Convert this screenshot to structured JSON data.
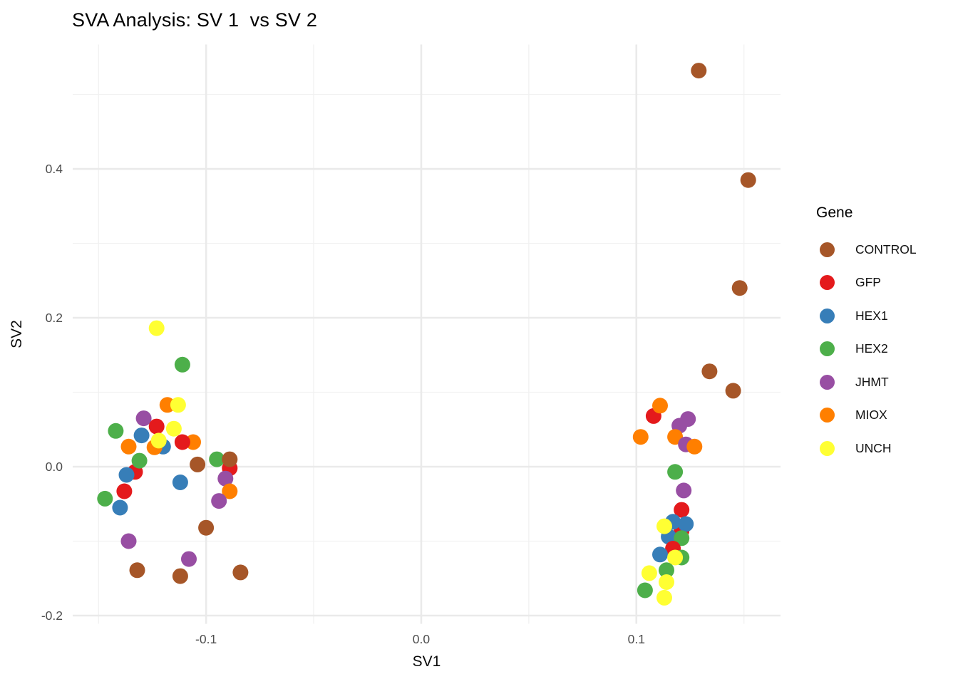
{
  "title": "SVA Analysis: SV 1  vs SV 2",
  "legend": {
    "title": "Gene",
    "entries": [
      {
        "label": "CONTROL",
        "color": "#A65628"
      },
      {
        "label": "GFP",
        "color": "#E41A1C"
      },
      {
        "label": "HEX1",
        "color": "#377EB8"
      },
      {
        "label": "HEX2",
        "color": "#4DAF4A"
      },
      {
        "label": "JHMT",
        "color": "#984EA3"
      },
      {
        "label": "MIOX",
        "color": "#FF7F00"
      },
      {
        "label": "UNCH",
        "color": "#FFFF33"
      }
    ]
  },
  "chart_data": {
    "type": "scatter",
    "title": "SVA Analysis: SV 1  vs SV 2",
    "xlabel": "SV1",
    "ylabel": "SV2",
    "legend_position": "right",
    "grid": true,
    "xlim": [
      -0.162,
      0.167
    ],
    "ylim": [
      -0.211,
      0.567
    ],
    "x_ticks": [
      {
        "value": -0.1,
        "label": "-0.1"
      },
      {
        "value": 0.0,
        "label": "0.0"
      },
      {
        "value": 0.1,
        "label": "0.1"
      }
    ],
    "y_ticks": [
      {
        "value": -0.2,
        "label": "-0.2"
      },
      {
        "value": 0.0,
        "label": "0.0"
      },
      {
        "value": 0.2,
        "label": "0.2"
      },
      {
        "value": 0.4,
        "label": "0.4"
      }
    ],
    "x_minor": [
      -0.15,
      -0.05,
      0.05,
      0.15
    ],
    "y_minor": [
      -0.1,
      0.1,
      0.3,
      0.5
    ],
    "points": [
      {
        "gene": "MIOX",
        "x": -0.118,
        "y": 0.083
      },
      {
        "gene": "UNCH",
        "x": -0.113,
        "y": 0.083
      },
      {
        "gene": "HEX2",
        "x": -0.111,
        "y": 0.137
      },
      {
        "gene": "UNCH",
        "x": -0.123,
        "y": 0.186
      },
      {
        "gene": "JHMT",
        "x": -0.129,
        "y": 0.065
      },
      {
        "gene": "HEX1",
        "x": -0.13,
        "y": 0.042
      },
      {
        "gene": "GFP",
        "x": -0.123,
        "y": 0.054
      },
      {
        "gene": "UNCH",
        "x": -0.115,
        "y": 0.051
      },
      {
        "gene": "HEX2",
        "x": -0.142,
        "y": 0.048
      },
      {
        "gene": "MIOX",
        "x": -0.136,
        "y": 0.027
      },
      {
        "gene": "HEX1",
        "x": -0.12,
        "y": 0.027
      },
      {
        "gene": "MIOX",
        "x": -0.124,
        "y": 0.026
      },
      {
        "gene": "UNCH",
        "x": -0.122,
        "y": 0.035
      },
      {
        "gene": "MIOX",
        "x": -0.106,
        "y": 0.033
      },
      {
        "gene": "GFP",
        "x": -0.111,
        "y": 0.033
      },
      {
        "gene": "GFP",
        "x": -0.133,
        "y": -0.007
      },
      {
        "gene": "HEX1",
        "x": -0.137,
        "y": -0.011
      },
      {
        "gene": "HEX2",
        "x": -0.131,
        "y": 0.008
      },
      {
        "gene": "CONTROL",
        "x": -0.104,
        "y": 0.003
      },
      {
        "gene": "HEX2",
        "x": -0.095,
        "y": 0.01
      },
      {
        "gene": "GFP",
        "x": -0.089,
        "y": -0.002
      },
      {
        "gene": "CONTROL",
        "x": -0.089,
        "y": 0.01
      },
      {
        "gene": "JHMT",
        "x": -0.091,
        "y": -0.016
      },
      {
        "gene": "HEX1",
        "x": -0.112,
        "y": -0.021
      },
      {
        "gene": "GFP",
        "x": -0.138,
        "y": -0.033
      },
      {
        "gene": "HEX2",
        "x": -0.147,
        "y": -0.043
      },
      {
        "gene": "HEX1",
        "x": -0.14,
        "y": -0.055
      },
      {
        "gene": "MIOX",
        "x": -0.089,
        "y": -0.033
      },
      {
        "gene": "JHMT",
        "x": -0.094,
        "y": -0.046
      },
      {
        "gene": "CONTROL",
        "x": -0.1,
        "y": -0.082
      },
      {
        "gene": "JHMT",
        "x": -0.136,
        "y": -0.1
      },
      {
        "gene": "JHMT",
        "x": -0.108,
        "y": -0.124
      },
      {
        "gene": "CONTROL",
        "x": -0.132,
        "y": -0.139
      },
      {
        "gene": "CONTROL",
        "x": -0.112,
        "y": -0.147
      },
      {
        "gene": "CONTROL",
        "x": -0.084,
        "y": -0.142
      },
      {
        "gene": "CONTROL",
        "x": 0.129,
        "y": 0.532
      },
      {
        "gene": "CONTROL",
        "x": 0.152,
        "y": 0.385
      },
      {
        "gene": "CONTROL",
        "x": 0.148,
        "y": 0.24
      },
      {
        "gene": "CONTROL",
        "x": 0.134,
        "y": 0.128
      },
      {
        "gene": "CONTROL",
        "x": 0.145,
        "y": 0.102
      },
      {
        "gene": "GFP",
        "x": 0.108,
        "y": 0.068
      },
      {
        "gene": "MIOX",
        "x": 0.111,
        "y": 0.082
      },
      {
        "gene": "JHMT",
        "x": 0.12,
        "y": 0.055
      },
      {
        "gene": "JHMT",
        "x": 0.124,
        "y": 0.064
      },
      {
        "gene": "MIOX",
        "x": 0.102,
        "y": 0.04
      },
      {
        "gene": "MIOX",
        "x": 0.118,
        "y": 0.04
      },
      {
        "gene": "JHMT",
        "x": 0.123,
        "y": 0.03
      },
      {
        "gene": "MIOX",
        "x": 0.127,
        "y": 0.027
      },
      {
        "gene": "HEX2",
        "x": 0.118,
        "y": -0.007
      },
      {
        "gene": "JHMT",
        "x": 0.122,
        "y": -0.032
      },
      {
        "gene": "GFP",
        "x": 0.121,
        "y": -0.058
      },
      {
        "gene": "GFP",
        "x": 0.121,
        "y": -0.086
      },
      {
        "gene": "HEX1",
        "x": 0.117,
        "y": -0.074
      },
      {
        "gene": "HEX1",
        "x": 0.123,
        "y": -0.077
      },
      {
        "gene": "HEX1",
        "x": 0.115,
        "y": -0.094
      },
      {
        "gene": "UNCH",
        "x": 0.113,
        "y": -0.08
      },
      {
        "gene": "HEX2",
        "x": 0.121,
        "y": -0.096
      },
      {
        "gene": "GFP",
        "x": 0.117,
        "y": -0.11
      },
      {
        "gene": "HEX1",
        "x": 0.111,
        "y": -0.118
      },
      {
        "gene": "HEX2",
        "x": 0.121,
        "y": -0.122
      },
      {
        "gene": "UNCH",
        "x": 0.118,
        "y": -0.122
      },
      {
        "gene": "HEX2",
        "x": 0.114,
        "y": -0.139
      },
      {
        "gene": "UNCH",
        "x": 0.106,
        "y": -0.143
      },
      {
        "gene": "UNCH",
        "x": 0.114,
        "y": -0.155
      },
      {
        "gene": "HEX2",
        "x": 0.104,
        "y": -0.166
      },
      {
        "gene": "UNCH",
        "x": 0.113,
        "y": -0.176
      }
    ]
  }
}
